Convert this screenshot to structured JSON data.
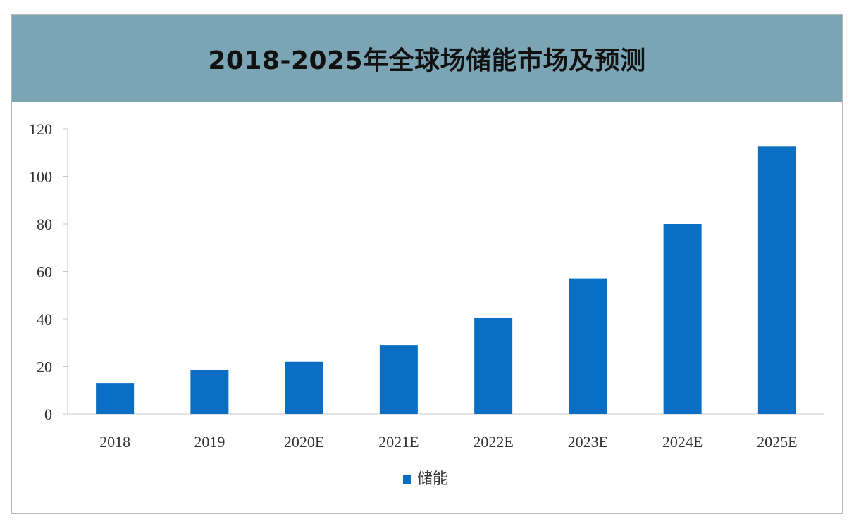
{
  "chart_data": {
    "type": "bar",
    "title": "2018-2025年全球场储能市场及预测",
    "categories": [
      "2018",
      "2019",
      "2020E",
      "2021E",
      "2022E",
      "2023E",
      "2024E",
      "2025E"
    ],
    "series": [
      {
        "name": "储能",
        "values": [
          13,
          18.5,
          22,
          29,
          40.5,
          57,
          80,
          112.5
        ]
      }
    ],
    "ylim": [
      0,
      120
    ],
    "yticks": [
      0,
      20,
      40,
      60,
      80,
      100,
      120
    ],
    "grid": false,
    "legend": "bottom",
    "colors": {
      "bar": "#0a6ec4",
      "title_band": "#7ba4b5"
    }
  }
}
